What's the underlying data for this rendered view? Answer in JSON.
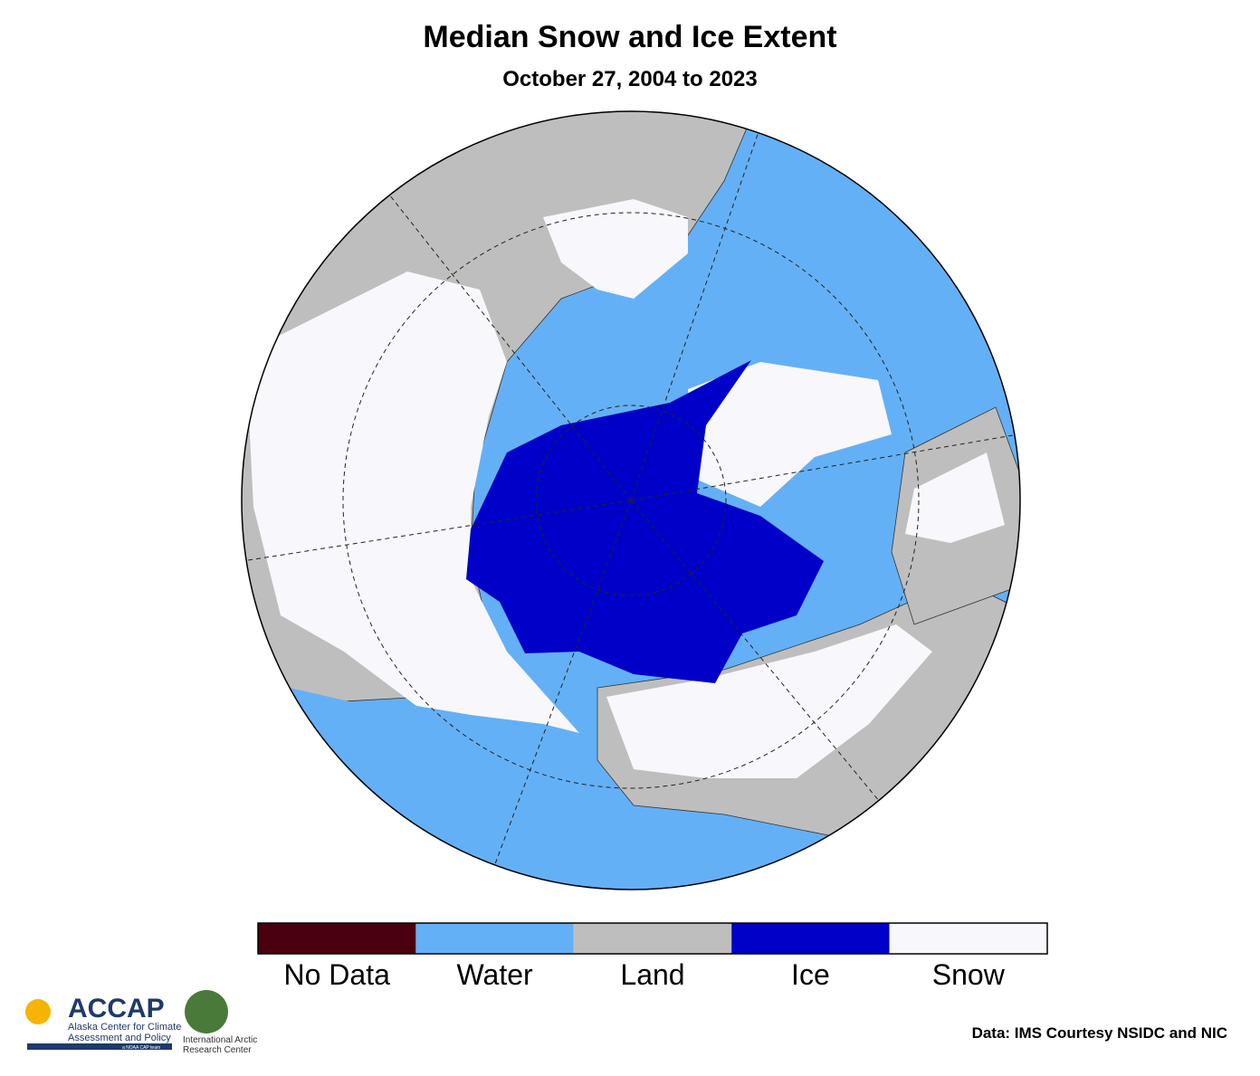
{
  "header": {
    "title": "Median Snow and Ice Extent",
    "subtitle": "October 27, 2004 to 2023"
  },
  "legend": {
    "items": [
      {
        "label": "No Data",
        "color": "#4b0010"
      },
      {
        "label": "Water",
        "color": "#64b0f6"
      },
      {
        "label": "Land",
        "color": "#bebebe"
      },
      {
        "label": "Ice",
        "color": "#0000c8"
      },
      {
        "label": "Snow",
        "color": "#f8f8fc"
      }
    ]
  },
  "footer": {
    "source": "Data: IMS Courtesy NSIDC and NIC",
    "logo1": {
      "name": "ACCAP",
      "line1": "Alaska Center for Climate",
      "line2": "Assessment and Policy",
      "line3": "a NOAA CAP team"
    },
    "logo2": {
      "line1": "International Arctic",
      "line2": "Research Center"
    }
  }
}
